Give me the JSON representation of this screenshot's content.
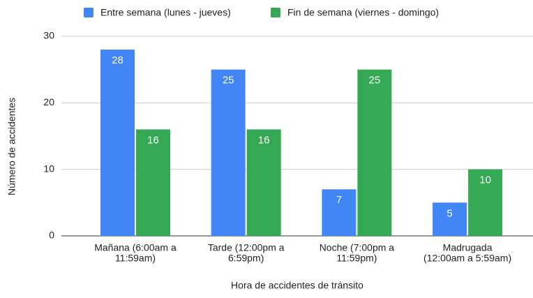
{
  "chart_data": {
    "type": "bar",
    "categories": [
      [
        "Mañana (6:00am a",
        "11:59am)"
      ],
      [
        "Tarde (12:00pm a",
        "6:59pm)"
      ],
      [
        "Noche (7:00pm a",
        "11:59pm)"
      ],
      [
        "Madrugada",
        "(12:00am a 5:59am)"
      ]
    ],
    "series": [
      {
        "name": "Entre semana (lunes - jueves)",
        "color": "#4285f4",
        "values": [
          28,
          25,
          7,
          5
        ]
      },
      {
        "name": "Fin de semana (viernes - domingo)",
        "color": "#34a853",
        "values": [
          16,
          16,
          25,
          10
        ]
      }
    ],
    "ylim": [
      0,
      30
    ],
    "yticks": [
      0,
      10,
      20,
      30
    ],
    "grid": true,
    "xlabel": "Hora de accidentes de tránsito",
    "ylabel": "Número de accidentes",
    "legend": "top"
  }
}
